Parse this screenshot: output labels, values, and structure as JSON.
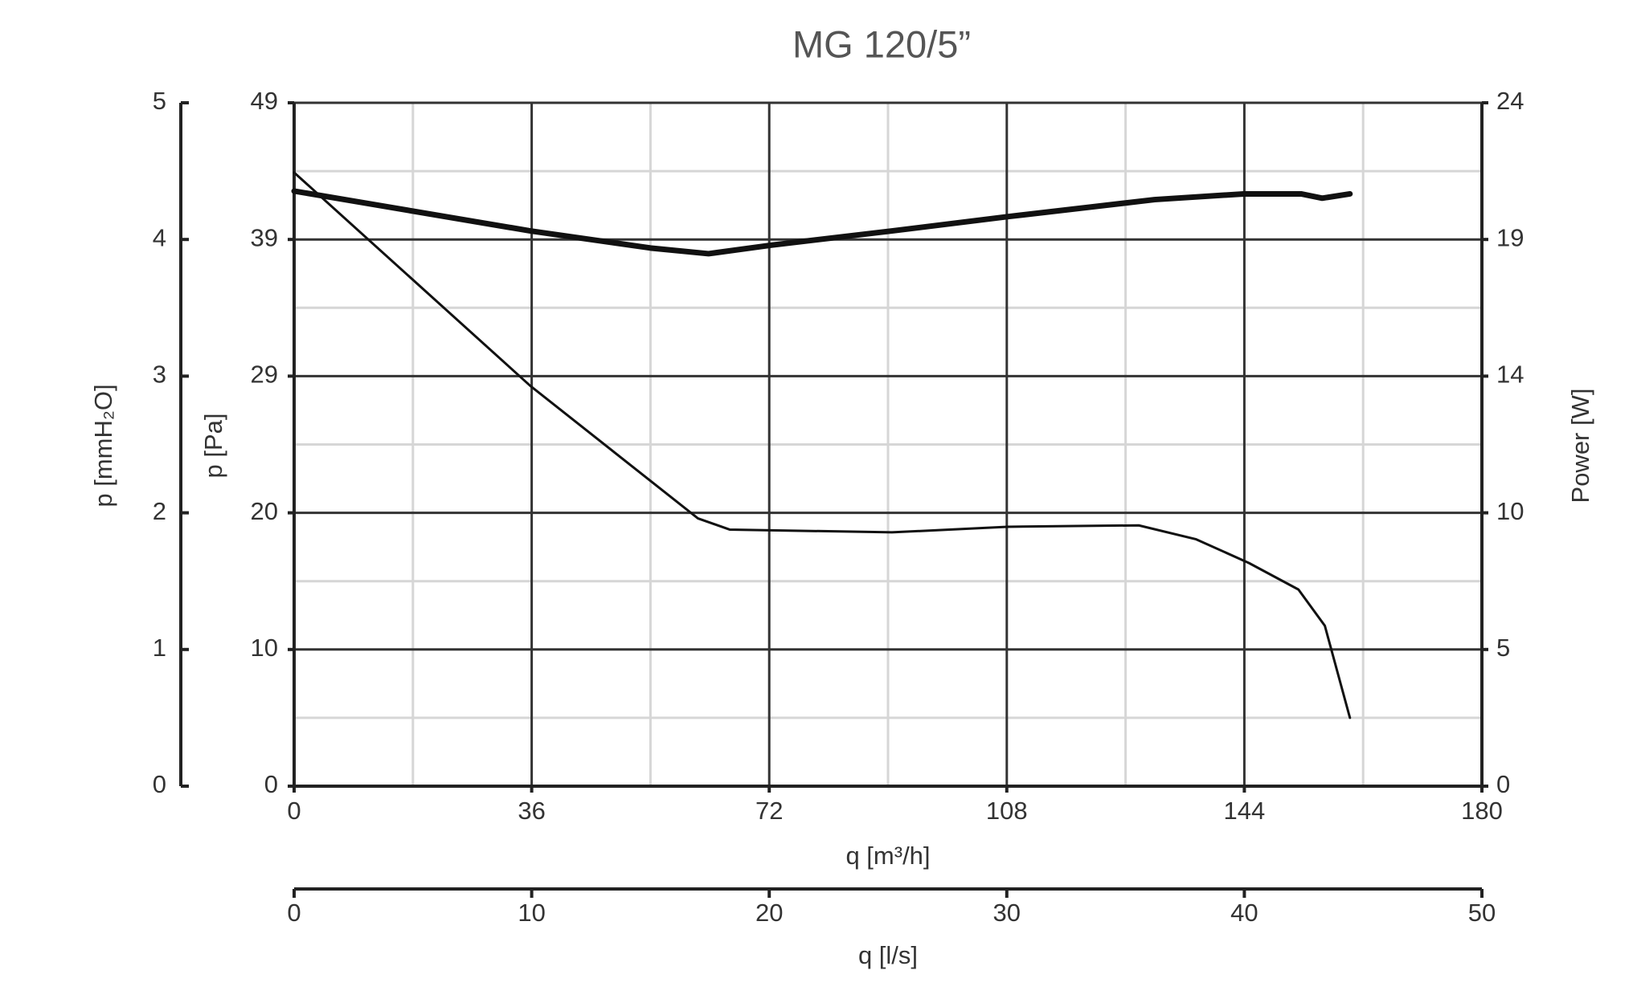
{
  "chart_data": {
    "type": "line",
    "title": "MG 120/5”",
    "x_label": "q [m³/h]",
    "xlim": [
      0,
      180
    ],
    "xticks": [
      0,
      36,
      72,
      108,
      144,
      180
    ],
    "x_minor_ticks": [
      18,
      54,
      90,
      126,
      162
    ],
    "x2_label": "q [l/s]",
    "x2lim": [
      0,
      50
    ],
    "x2ticks": [
      0,
      10,
      20,
      30,
      40,
      50
    ],
    "y_label": "p [Pa]",
    "ylim": [
      0,
      49
    ],
    "yticks": [
      0,
      {
        "value": 9.8,
        "label": "10"
      },
      {
        "value": 19.6,
        "label": "20"
      },
      {
        "value": 29.4,
        "label": "29"
      },
      {
        "value": 39.2,
        "label": "39"
      },
      49
    ],
    "y2_label": "Power [W]",
    "y2lim": [
      0,
      24
    ],
    "y2ticks": [
      0,
      {
        "value": 4.8,
        "label": "5"
      },
      {
        "value": 9.6,
        "label": "10"
      },
      {
        "value": 14.4,
        "label": "14"
      },
      {
        "value": 19.2,
        "label": "19"
      },
      24
    ],
    "y3_label": "p [mmH₂O]",
    "y3lim": [
      0,
      5
    ],
    "y3ticks": [
      0,
      1,
      2,
      3,
      4,
      5
    ],
    "y3_minor_ticks": [
      0.5,
      1.5,
      2.5,
      3.5,
      4.5
    ],
    "grid": true,
    "series": [
      {
        "color": "#111111",
        "x": [
          0,
          35.8,
          61.2,
          66,
          90.6,
          108.1,
          128,
          136.7,
          144.7,
          152.2,
          156.2,
          160
        ],
        "values": [
          44.0,
          28.7,
          19.2,
          18.4,
          18.2,
          18.6,
          18.7,
          17.7,
          16.0,
          14.1,
          11.5,
          4.9
        ]
      },
      {
        "color": "#111111",
        "axis": "y2",
        "x": [
          0,
          35.8,
          54,
          62.8,
          72.3,
          90.6,
          108.1,
          130.4,
          143.9,
          152.6,
          155.8,
          160
        ],
        "values": [
          20.9,
          19.5,
          18.9,
          18.7,
          19.0,
          19.5,
          20.0,
          20.6,
          20.8,
          20.8,
          20.65,
          20.8
        ]
      }
    ]
  }
}
